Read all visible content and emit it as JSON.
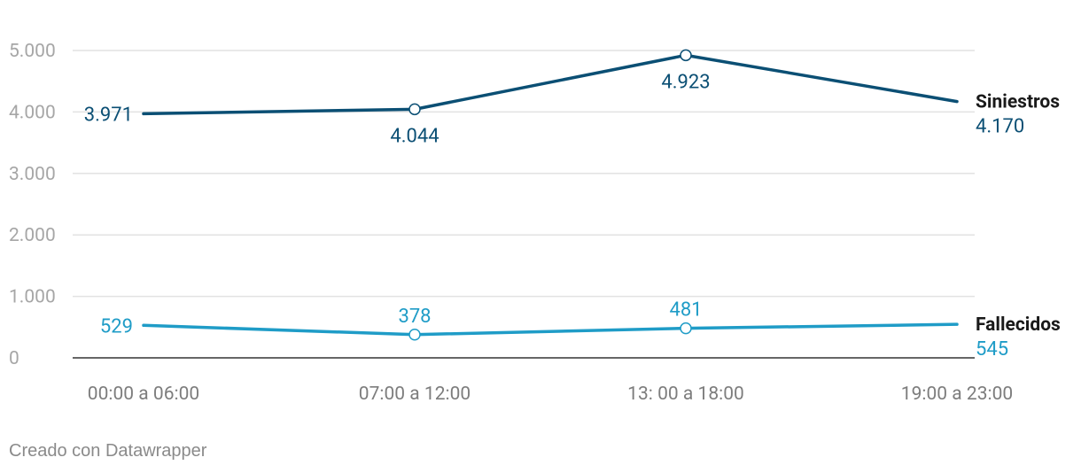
{
  "chart_data": {
    "type": "line",
    "categories": [
      "00:00 a 06:00",
      "07:00 a 12:00",
      "13: 00 a 18:00",
      "19:00 a 23:00"
    ],
    "series": [
      {
        "name": "Siniestros",
        "values": [
          3971,
          4044,
          4923,
          4170
        ],
        "labels": [
          "3.971",
          "4.044",
          "4.923",
          "4.170"
        ],
        "color": "#0b4f74"
      },
      {
        "name": "Fallecidos",
        "values": [
          529,
          378,
          481,
          545
        ],
        "labels": [
          "529",
          "378",
          "481",
          "545"
        ],
        "color": "#1f9cc7"
      }
    ],
    "y_ticks": [
      0,
      1000,
      2000,
      3000,
      4000,
      5000
    ],
    "y_tick_labels": [
      "0",
      "1.000",
      "2.000",
      "3.000",
      "4.000",
      "5.000"
    ],
    "ylim": [
      0,
      5000
    ],
    "grid": true,
    "legend": "end-of-line labels on right",
    "label_color": "#1a1a1a"
  },
  "footer": {
    "credit": "Creado con Datawrapper"
  }
}
